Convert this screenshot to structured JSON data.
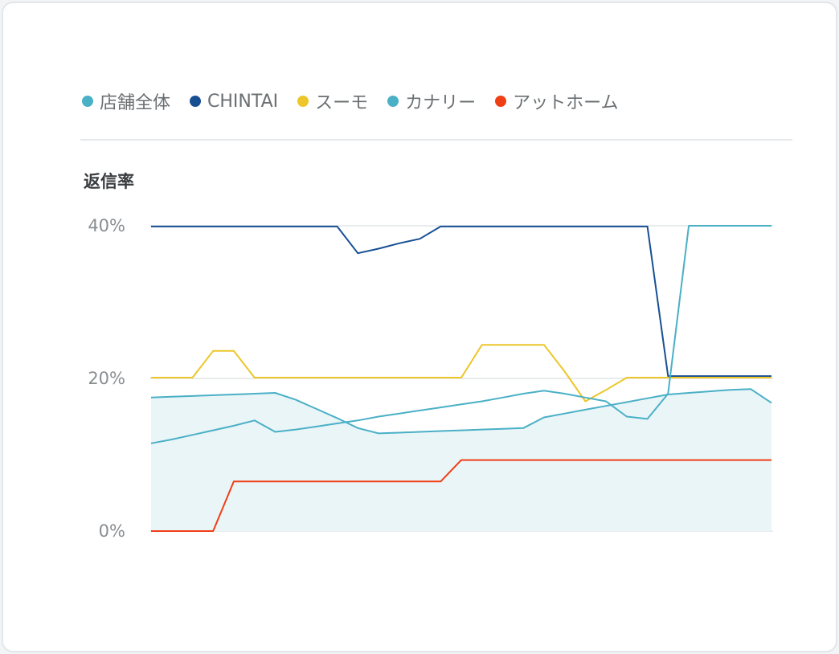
{
  "metric_title": "返信率",
  "legend": [
    {
      "label": "店舗全体",
      "color": "#4ab0c6"
    },
    {
      "label": "CHINTAI",
      "color": "#174f93"
    },
    {
      "label": "スーモ",
      "color": "#ecc62a"
    },
    {
      "label": "カナリー",
      "color": "#4ab0c6"
    },
    {
      "label": "アットホーム",
      "color": "#f03e15"
    }
  ],
  "chart_data": {
    "type": "line",
    "y_ticks": [
      "0%",
      "20%",
      "40%"
    ],
    "ylim": [
      0,
      40
    ],
    "x": [
      0,
      1,
      2,
      3,
      4,
      5,
      6,
      7,
      8,
      9,
      10,
      11,
      12,
      13,
      14,
      15,
      16,
      17,
      18,
      19,
      20,
      21,
      22,
      23,
      24,
      25,
      26,
      27,
      28,
      29,
      30
    ],
    "grid": true,
    "series": [
      {
        "name": "店舗全体",
        "color": "#4ab0c6",
        "fill": true,
        "values": [
          17.5,
          17.6,
          17.7,
          17.8,
          17.9,
          18.0,
          18.1,
          17.2,
          16.0,
          14.8,
          13.5,
          12.8,
          12.9,
          13.0,
          13.1,
          13.2,
          13.3,
          13.4,
          13.5,
          14.9,
          15.4,
          15.9,
          16.4,
          16.9,
          17.4,
          17.9,
          18.1,
          18.3,
          18.5,
          18.6,
          16.8
        ]
      },
      {
        "name": "CHINTAI",
        "color": "#174f93",
        "values": [
          39.9,
          39.9,
          39.9,
          39.9,
          39.9,
          39.9,
          39.9,
          39.9,
          39.9,
          39.9,
          36.4,
          37.0,
          37.7,
          38.3,
          39.9,
          39.9,
          39.9,
          39.9,
          39.9,
          39.9,
          39.9,
          39.9,
          39.9,
          39.9,
          39.9,
          20.3,
          20.3,
          20.3,
          20.3,
          20.3,
          20.3
        ]
      },
      {
        "name": "スーモ",
        "color": "#ecc62a",
        "values": [
          20.1,
          20.1,
          20.1,
          23.6,
          23.6,
          20.1,
          20.1,
          20.1,
          20.1,
          20.1,
          20.1,
          20.1,
          20.1,
          20.1,
          20.1,
          20.1,
          24.4,
          24.4,
          24.4,
          24.4,
          20.9,
          17.0,
          18.5,
          20.1,
          20.1,
          20.1,
          20.1,
          20.1,
          20.1,
          20.1,
          20.1
        ]
      },
      {
        "name": "カナリー",
        "color": "#4ab0c6",
        "values": [
          11.5,
          12.0,
          12.6,
          13.2,
          13.8,
          14.5,
          13.0,
          13.3,
          13.7,
          14.1,
          14.5,
          15.0,
          15.4,
          15.8,
          16.2,
          16.6,
          17.0,
          17.5,
          18.0,
          18.4,
          18.0,
          17.5,
          17.0,
          15.0,
          14.7,
          18.0,
          40.0,
          40.0,
          40.0,
          40.0,
          40.0
        ]
      },
      {
        "name": "アットホーム",
        "color": "#f03e15",
        "values": [
          0.0,
          0.0,
          0.0,
          0.0,
          6.5,
          6.5,
          6.5,
          6.5,
          6.5,
          6.5,
          6.5,
          6.5,
          6.5,
          6.5,
          6.5,
          9.3,
          9.3,
          9.3,
          9.3,
          9.3,
          9.3,
          9.3,
          9.3,
          9.3,
          9.3,
          9.3,
          9.3,
          9.3,
          9.3,
          9.3,
          9.3
        ]
      }
    ]
  }
}
